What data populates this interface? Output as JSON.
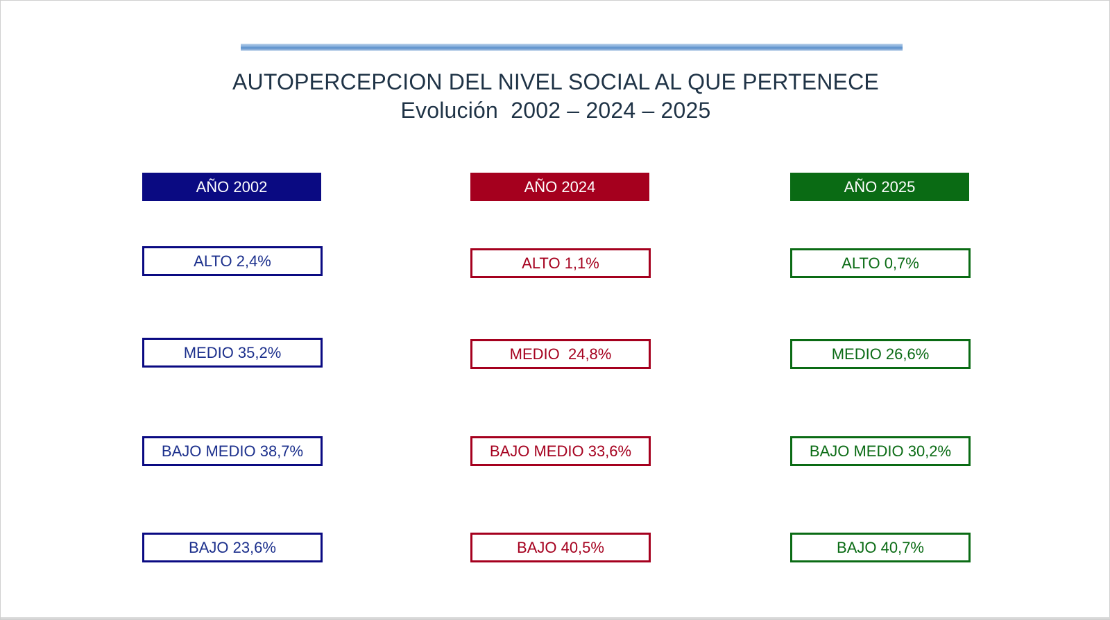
{
  "title": {
    "line1": "AUTOPERCEPCION DEL NIVEL SOCIAL AL QUE PERTENECE",
    "line2": "Evolución  2002 – 2024 – 2025"
  },
  "columns": [
    {
      "header": "AÑO 2002",
      "header_color": "#0a0a82",
      "text_color": "#1b2f8c",
      "border_color": "#0a0a82",
      "levels": [
        {
          "label": "ALTO 2,4%",
          "name": "ALTO",
          "percent": 2.4
        },
        {
          "label": "MEDIO 35,2%",
          "name": "MEDIO",
          "percent": 35.2
        },
        {
          "label": "BAJO MEDIO 38,7%",
          "name": "BAJO MEDIO",
          "percent": 38.7
        },
        {
          "label": "BAJO 23,6%",
          "name": "BAJO",
          "percent": 23.6
        }
      ]
    },
    {
      "header": "AÑO 2024",
      "header_color": "#a5001e",
      "text_color": "#a5001e",
      "border_color": "#a5001e",
      "levels": [
        {
          "label": "ALTO 1,1%",
          "name": "ALTO",
          "percent": 1.1
        },
        {
          "label": "MEDIO  24,8%",
          "name": "MEDIO",
          "percent": 24.8
        },
        {
          "label": "BAJO MEDIO 33,6%",
          "name": "BAJO MEDIO",
          "percent": 33.6
        },
        {
          "label": "BAJO 40,5%",
          "name": "BAJO",
          "percent": 40.5
        }
      ]
    },
    {
      "header": "AÑO 2025",
      "header_color": "#0a6b14",
      "text_color": "#0a6b14",
      "border_color": "#0a6b14",
      "levels": [
        {
          "label": "ALTO 0,7%",
          "name": "ALTO",
          "percent": 0.7
        },
        {
          "label": "MEDIO 26,6%",
          "name": "MEDIO",
          "percent": 26.6
        },
        {
          "label": "BAJO MEDIO 30,2%",
          "name": "BAJO MEDIO",
          "percent": 30.2
        },
        {
          "label": "BAJO 40,7%",
          "name": "BAJO",
          "percent": 40.7
        }
      ]
    }
  ]
}
